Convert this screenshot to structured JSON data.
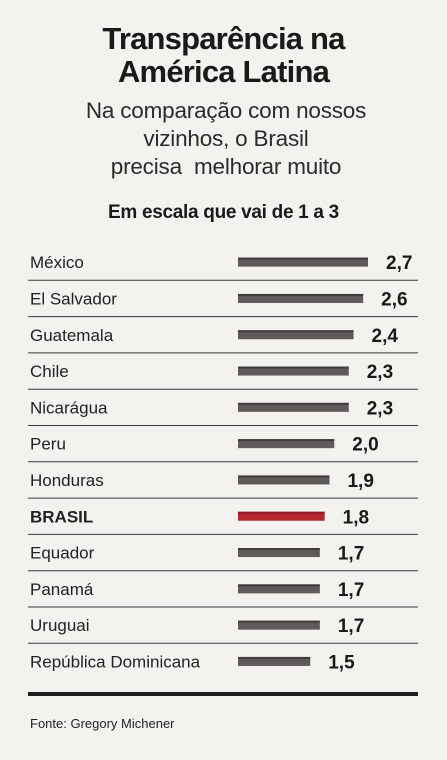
{
  "header": {
    "title_line1": "Transparência na",
    "title_line2": "América Latina",
    "subtitle_line1": "Na comparação com nossos",
    "subtitle_line2": "vizinhos, o Brasil",
    "subtitle_line3": "precisa  melhorar muito",
    "scale_note": "Em escala que vai de 1 a 3"
  },
  "colors": {
    "bar": "#5e5b5a",
    "highlight_bar": "#b3262e",
    "rule": "#3a3a3a",
    "background": "#f3f2ef"
  },
  "chart_data": {
    "type": "bar",
    "orientation": "horizontal",
    "scale": [
      1,
      3
    ],
    "categories": [
      "México",
      "El Salvador",
      "Guatemala",
      "Chile",
      "Nicarágua",
      "Peru",
      "Honduras",
      "BRASIL",
      "Equador",
      "Panamá",
      "Uruguai",
      "República Dominicana"
    ],
    "values": [
      2.7,
      2.6,
      2.4,
      2.3,
      2.3,
      2.0,
      1.9,
      1.8,
      1.7,
      1.7,
      1.7,
      1.5
    ],
    "value_labels": [
      "2,7",
      "2,6",
      "2,4",
      "2,3",
      "2,3",
      "2,0",
      "1,9",
      "1,8",
      "1,7",
      "1,7",
      "1,7",
      "1,5"
    ],
    "highlight": "BRASIL",
    "grid": false,
    "legend": "none"
  },
  "footer": {
    "source": "Fonte: Gregory Michener"
  }
}
